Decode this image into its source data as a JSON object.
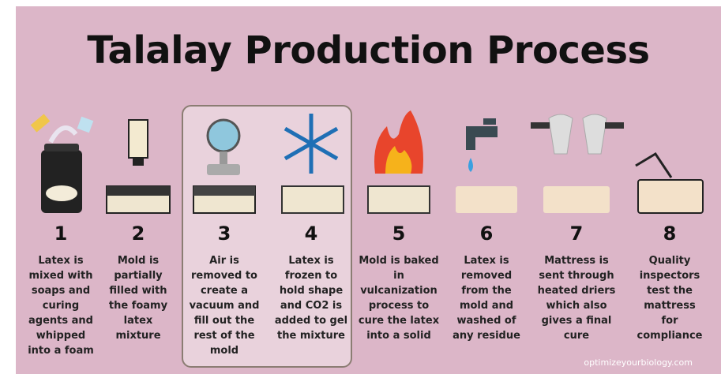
{
  "title": "Talalay Production Process",
  "steps": [
    {
      "number": 1,
      "lines": [
        "Latex is",
        "mixed with",
        "soaps and",
        "curing",
        "agents and",
        "whipped",
        "into a foam"
      ]
    },
    {
      "number": 2,
      "lines": [
        "Mold is",
        "partially",
        "filled with",
        "the foamy",
        "latex",
        "mixture"
      ]
    },
    {
      "number": 3,
      "lines": [
        "Air is",
        "removed to",
        "create a",
        "vacuum and",
        "fill out the",
        "rest of the",
        "mold"
      ]
    },
    {
      "number": 4,
      "lines": [
        "Latex is",
        "frozen to",
        "hold shape",
        "and CO2 is",
        "added to gel",
        "the mixture"
      ]
    },
    {
      "number": 5,
      "lines": [
        "Mold is baked",
        "in",
        "vulcanization",
        "process to",
        "cure the latex",
        "into a solid"
      ]
    },
    {
      "number": 6,
      "lines": [
        "Latex is",
        "removed",
        "from the",
        "mold and",
        "washed of",
        "any residue"
      ]
    },
    {
      "number": 7,
      "lines": [
        "Mattress is",
        "sent through",
        "heated driers",
        "which also",
        "gives a final",
        "cure"
      ]
    },
    {
      "number": 8,
      "lines": [
        "Quality",
        "inspectors",
        "test the",
        "mattress",
        "for",
        "compliance"
      ]
    }
  ],
  "footer": "optimizeyourbiology.com"
}
